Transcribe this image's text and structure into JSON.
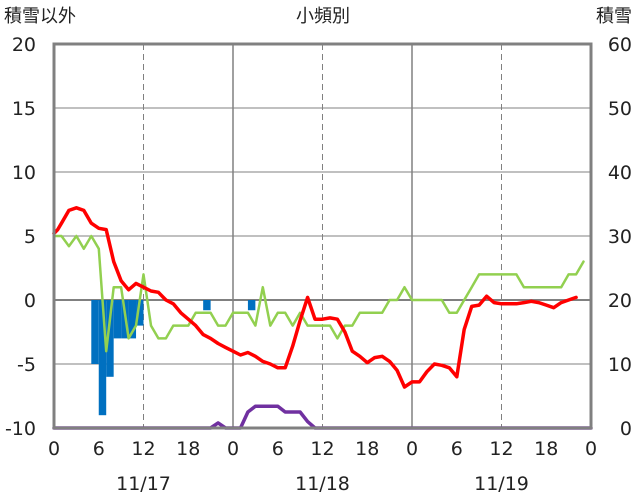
{
  "chart_data": {
    "type": "line",
    "title": "小頻別",
    "ylabel_left": "積雪以外",
    "ylabel_right": "積雪",
    "ylim_left": [
      -10,
      20
    ],
    "ylim_right": [
      0,
      60
    ],
    "y_ticks_left": [
      "20",
      "15",
      "10",
      "5",
      "0",
      "-5",
      "-10"
    ],
    "y_ticks_right": [
      "60",
      "50",
      "40",
      "30",
      "20",
      "10",
      "0"
    ],
    "x_range_hours": [
      0,
      72
    ],
    "x_tick_labels": [
      "0",
      "6",
      "12",
      "18",
      "0",
      "6",
      "12",
      "18",
      "0",
      "6",
      "12",
      "18",
      "0"
    ],
    "date_labels": [
      "11/17",
      "11/18",
      "11/19"
    ],
    "grid": true,
    "colors": {
      "red_series": "#ff0000",
      "green_series": "#92d050",
      "purple_series": "#7030a0",
      "blue_bars": "#0070c0",
      "frame": "#808080",
      "grid": "#808080"
    },
    "red_series_values": [
      [
        0,
        5.2
      ],
      [
        0.5,
        5.5
      ],
      [
        1,
        6
      ],
      [
        2,
        7
      ],
      [
        3,
        7.2
      ],
      [
        4,
        7
      ],
      [
        5,
        6
      ],
      [
        6,
        5.6
      ],
      [
        7,
        5.5
      ],
      [
        8,
        3
      ],
      [
        9,
        1.5
      ],
      [
        10,
        0.8
      ],
      [
        11,
        1.3
      ],
      [
        12,
        1
      ],
      [
        13,
        0.7
      ],
      [
        14,
        0.6
      ],
      [
        15,
        0
      ],
      [
        16,
        -0.3
      ],
      [
        17,
        -1
      ],
      [
        18,
        -1.5
      ],
      [
        19,
        -2
      ],
      [
        20,
        -2.7
      ],
      [
        21,
        -3
      ],
      [
        22,
        -3.4
      ],
      [
        23,
        -3.7
      ],
      [
        24,
        -4
      ],
      [
        25,
        -4.3
      ],
      [
        26,
        -4.1
      ],
      [
        27,
        -4.4
      ],
      [
        28,
        -4.8
      ],
      [
        29,
        -5
      ],
      [
        30,
        -5.3
      ],
      [
        31,
        -5.3
      ],
      [
        32,
        -3.6
      ],
      [
        33,
        -1.6
      ],
      [
        34,
        0.2
      ],
      [
        35,
        -1.5
      ],
      [
        36,
        -1.5
      ],
      [
        37,
        -1.4
      ],
      [
        38,
        -1.5
      ],
      [
        39,
        -2.5
      ],
      [
        40,
        -4
      ],
      [
        41,
        -4.4
      ],
      [
        42,
        -4.9
      ],
      [
        43,
        -4.5
      ],
      [
        44,
        -4.4
      ],
      [
        45,
        -4.8
      ],
      [
        46,
        -5.5
      ],
      [
        47,
        -6.8
      ],
      [
        48,
        -6.4
      ],
      [
        49,
        -6.4
      ],
      [
        50,
        -5.6
      ],
      [
        51,
        -5
      ],
      [
        52,
        -5.1
      ],
      [
        53,
        -5.3
      ],
      [
        54,
        -6
      ],
      [
        55,
        -2.3
      ],
      [
        56,
        -0.5
      ],
      [
        57,
        -0.4
      ],
      [
        58,
        0.3
      ],
      [
        59,
        -0.2
      ],
      [
        60,
        -0.3
      ],
      [
        61,
        -0.3
      ],
      [
        62,
        -0.3
      ],
      [
        63,
        -0.2
      ],
      [
        64,
        -0.1
      ],
      [
        65,
        -0.2
      ],
      [
        66,
        -0.4
      ],
      [
        67,
        -0.6
      ],
      [
        68,
        -0.2
      ],
      [
        69,
        0
      ],
      [
        70,
        0.2
      ]
    ],
    "green_series_values": [
      [
        0,
        5
      ],
      [
        1,
        5
      ],
      [
        2,
        4.2
      ],
      [
        3,
        5
      ],
      [
        4,
        4
      ],
      [
        5,
        5
      ],
      [
        6,
        4
      ],
      [
        7,
        -4
      ],
      [
        8,
        1
      ],
      [
        9,
        1
      ],
      [
        10,
        -3
      ],
      [
        11,
        -2
      ],
      [
        12,
        2
      ],
      [
        13,
        -2
      ],
      [
        14,
        -3
      ],
      [
        15,
        -3
      ],
      [
        16,
        -2
      ],
      [
        17,
        -2
      ],
      [
        18,
        -2
      ],
      [
        19,
        -1
      ],
      [
        20,
        -1
      ],
      [
        21,
        -1
      ],
      [
        22,
        -2
      ],
      [
        23,
        -2
      ],
      [
        24,
        -1
      ],
      [
        25,
        -1
      ],
      [
        26,
        -1
      ],
      [
        27,
        -2
      ],
      [
        28,
        1
      ],
      [
        29,
        -2
      ],
      [
        30,
        -1
      ],
      [
        31,
        -1
      ],
      [
        32,
        -2
      ],
      [
        33,
        -1
      ],
      [
        34,
        -2
      ],
      [
        35,
        -2
      ],
      [
        36,
        -2
      ],
      [
        37,
        -2
      ],
      [
        38,
        -3
      ],
      [
        39,
        -2
      ],
      [
        40,
        -2
      ],
      [
        41,
        -1
      ],
      [
        42,
        -1
      ],
      [
        43,
        -1
      ],
      [
        44,
        -1
      ],
      [
        45,
        0
      ],
      [
        46,
        0
      ],
      [
        47,
        1
      ],
      [
        48,
        0
      ],
      [
        49,
        0
      ],
      [
        50,
        0
      ],
      [
        51,
        0
      ],
      [
        52,
        0
      ],
      [
        53,
        -1
      ],
      [
        54,
        -1
      ],
      [
        55,
        0
      ],
      [
        56,
        1
      ],
      [
        57,
        2
      ],
      [
        58,
        2
      ],
      [
        59,
        2
      ],
      [
        60,
        2
      ],
      [
        61,
        2
      ],
      [
        62,
        2
      ],
      [
        63,
        1
      ],
      [
        64,
        1
      ],
      [
        65,
        1
      ],
      [
        66,
        1
      ],
      [
        67,
        1
      ],
      [
        68,
        1
      ],
      [
        69,
        2
      ],
      [
        70,
        2
      ],
      [
        71,
        3
      ]
    ],
    "purple_series_snow": [
      [
        0,
        0
      ],
      [
        21,
        0
      ],
      [
        22,
        0.8
      ],
      [
        23,
        0
      ],
      [
        25,
        0
      ],
      [
        26,
        2.5
      ],
      [
        27,
        3.4
      ],
      [
        30,
        3.4
      ],
      [
        31,
        2.5
      ],
      [
        33,
        2.5
      ],
      [
        34,
        1
      ],
      [
        35,
        0
      ],
      [
        72,
        0
      ]
    ],
    "blue_bar_values": [
      [
        5,
        -5
      ],
      [
        6,
        -9
      ],
      [
        7,
        -6
      ],
      [
        8,
        -3
      ],
      [
        9,
        -3
      ],
      [
        10,
        -3
      ],
      [
        11,
        -2
      ],
      [
        20,
        -0.8
      ],
      [
        26,
        -0.8
      ]
    ]
  }
}
